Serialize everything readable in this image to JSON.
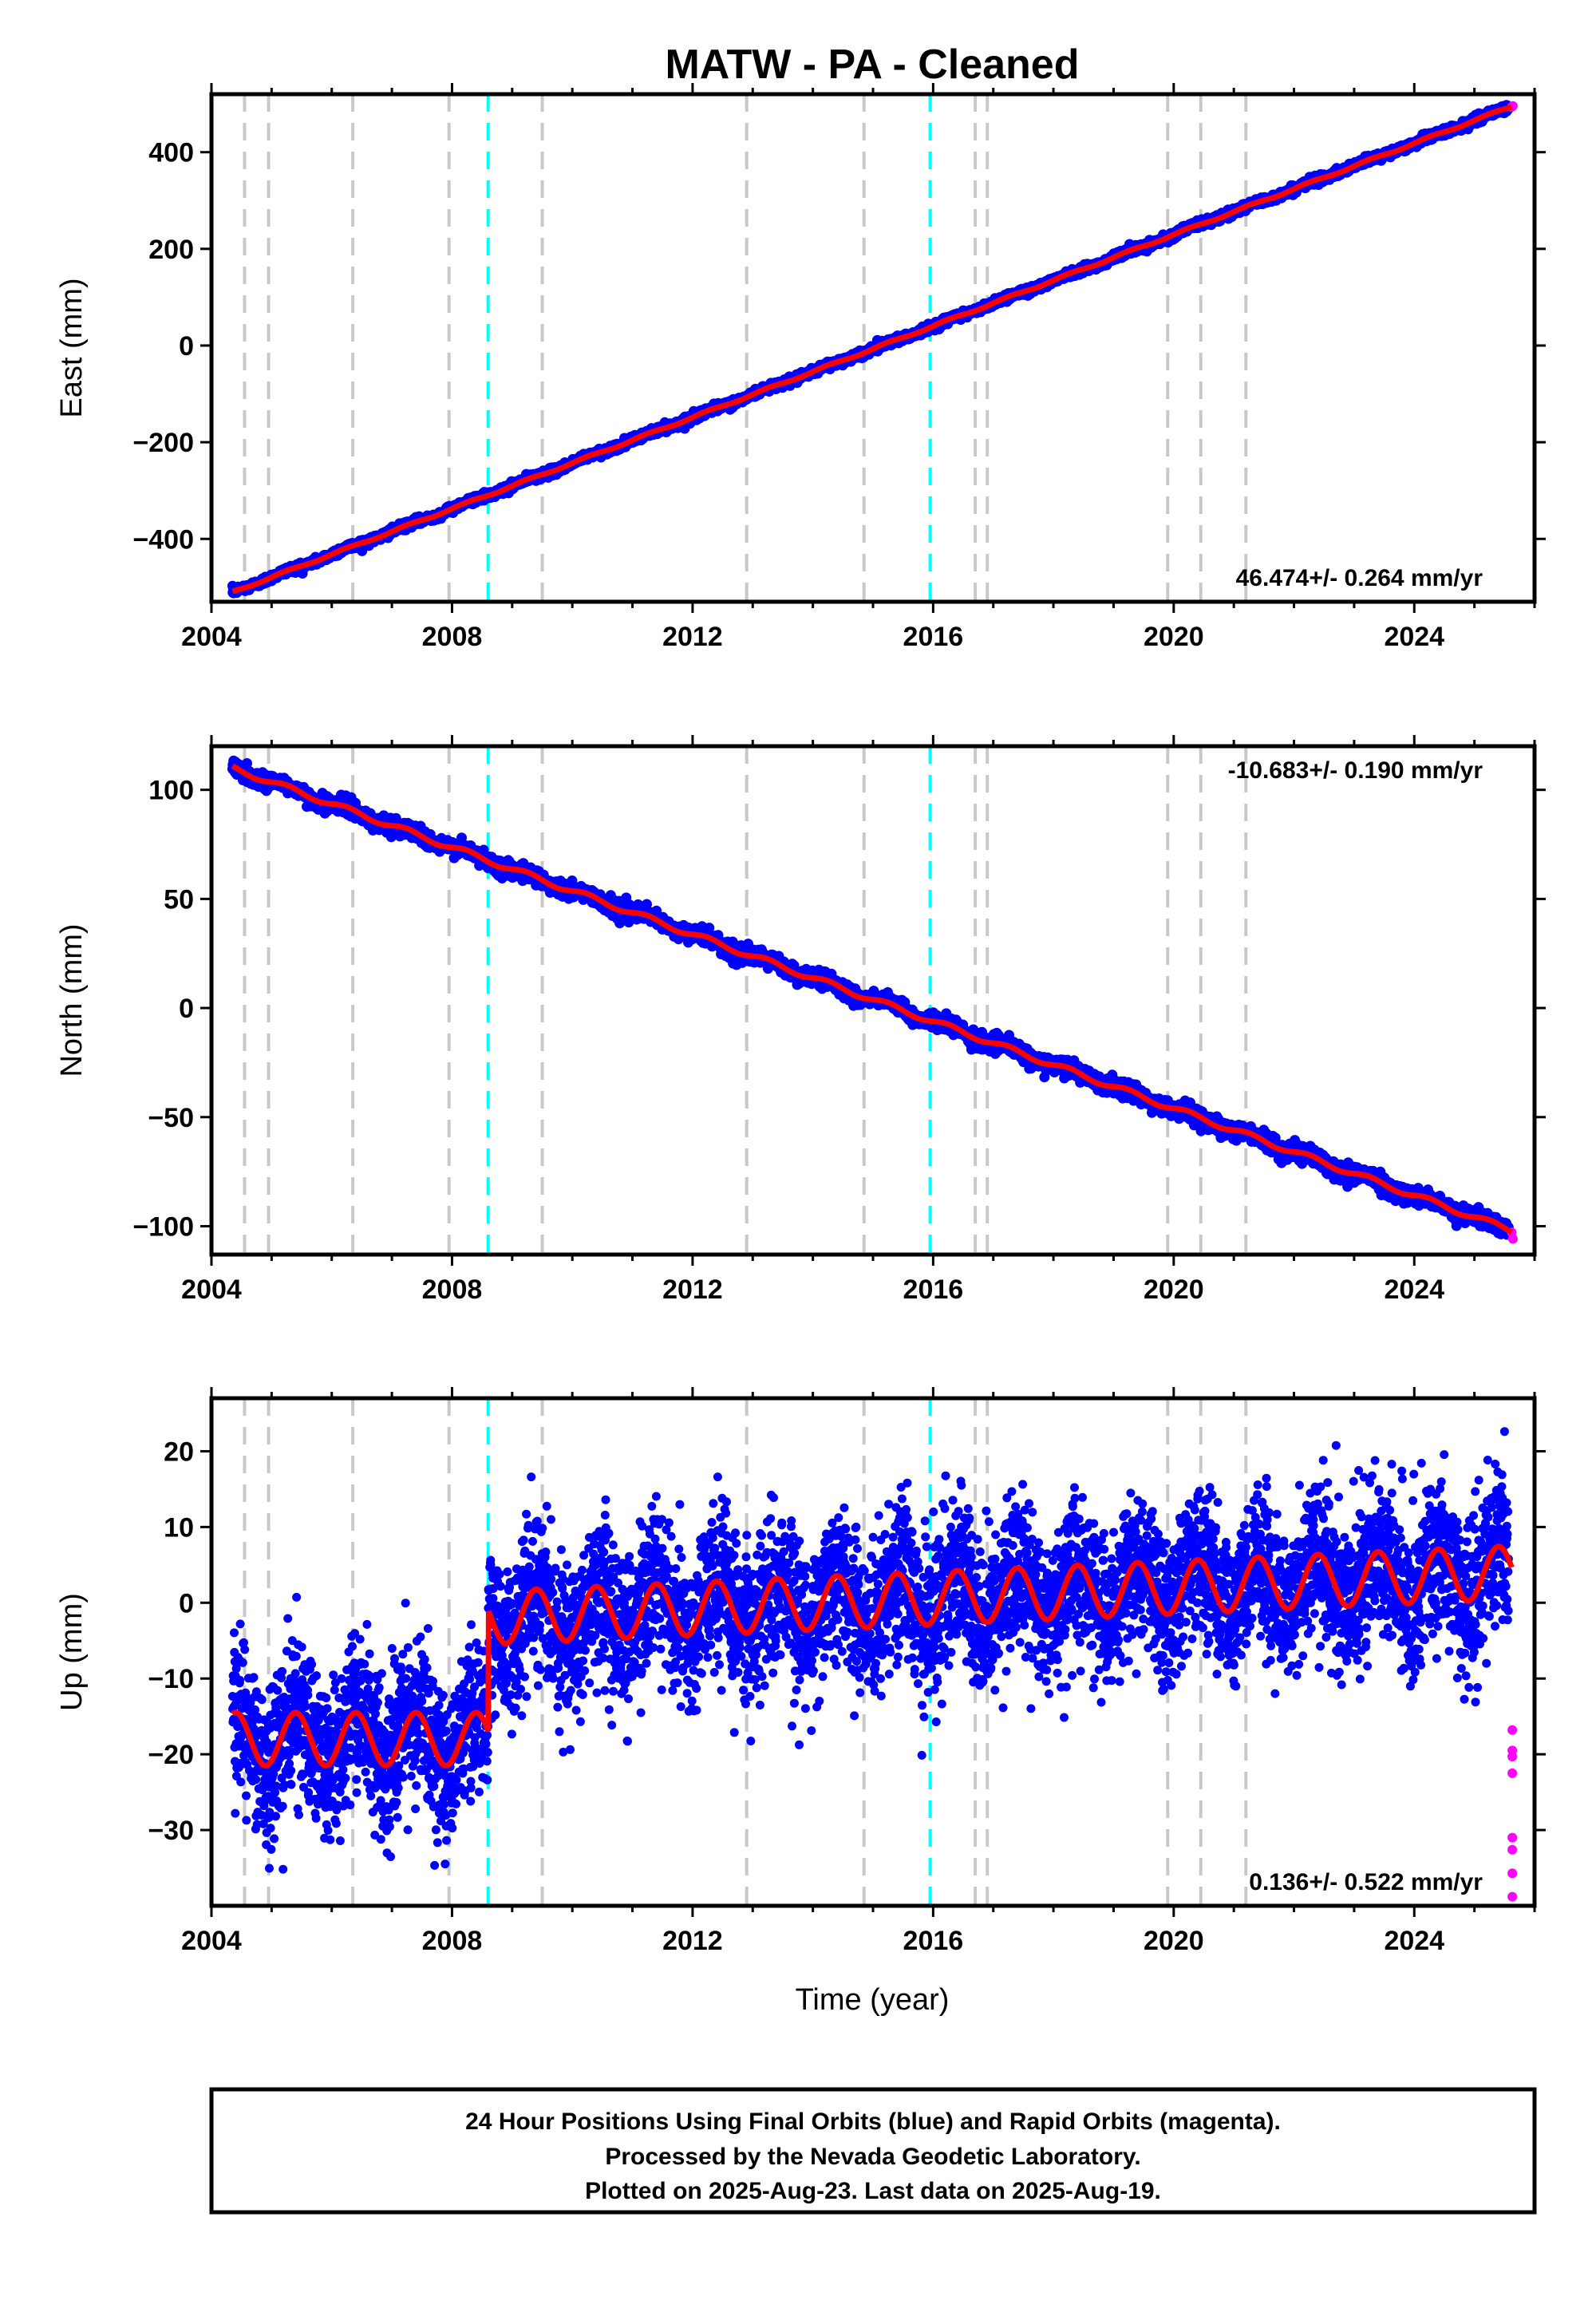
{
  "chart_data": {
    "type": "scatter",
    "title": "MATW  - PA - Cleaned",
    "xlabel": "Time (year)",
    "xlim": [
      2004.0,
      2026.0
    ],
    "xticks": [
      2004,
      2008,
      2012,
      2016,
      2020,
      2024
    ],
    "final_color": "#0000ff",
    "rapid_color": "#ff00ff",
    "model_color": "#ff0000",
    "equipment_event_color": "#c8c8c8",
    "earthquake_event_color": "#00ffff",
    "equipment_events": [
      2004.55,
      2004.95,
      2006.35,
      2007.95,
      2009.5,
      2012.9,
      2014.85,
      2016.7,
      2016.9,
      2019.9,
      2020.45,
      2021.2
    ],
    "earthquake_events": [
      2008.6,
      2015.95
    ],
    "panels": [
      {
        "ylabel": "East (mm)",
        "ylim": [
          -530,
          520
        ],
        "yticks": [
          -400,
          -200,
          0,
          200,
          400
        ],
        "rate": "46.474+/- 0.264 mm/yr",
        "rate_position": "bottom-right",
        "start_value": -510,
        "end_value": 495
      },
      {
        "ylabel": "North (mm)",
        "ylim": [
          -113,
          120
        ],
        "yticks": [
          -100,
          -50,
          0,
          50,
          100
        ],
        "rate": "-10.683+/- 0.190 mm/yr",
        "rate_position": "top-right",
        "start_value": 110,
        "end_value": -102
      },
      {
        "ylabel": "Up (mm)",
        "ylim": [
          -40,
          27
        ],
        "yticks": [
          -30,
          -20,
          -10,
          0,
          10,
          20
        ],
        "rate": "0.136+/- 0.522 mm/yr",
        "rate_position": "bottom-right",
        "offset_at_event": 2008.6,
        "mean_before": -18,
        "mean_after_start": -2,
        "mean_after_end": 4,
        "seasonal_amplitude": 3.5
      }
    ]
  },
  "footer": {
    "line1": "24 Hour Positions Using Final Orbits (blue) and Rapid Orbits (magenta).",
    "line2": "Processed by the Nevada Geodetic Laboratory.",
    "line3": "Plotted on 2025-Aug-23. Last data on 2025-Aug-19."
  }
}
